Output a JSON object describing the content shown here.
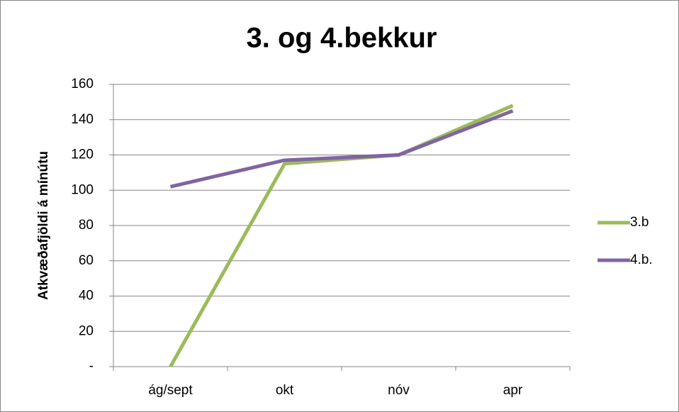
{
  "chart_data": {
    "type": "line",
    "title": "3. og 4.bekkur",
    "y_label": "Atkvæðafjöldi á mínútu",
    "categories": [
      "ág/sept",
      "okt",
      "nóv",
      "apr"
    ],
    "series": [
      {
        "name": "3.b",
        "color": "#9bbb59",
        "values": [
          0,
          115,
          120,
          148
        ]
      },
      {
        "name": "4.b.",
        "color": "#8064a2",
        "values": [
          102,
          117,
          120,
          145
        ]
      }
    ],
    "ylim": [
      0,
      160
    ],
    "yticks": [
      {
        "value": 0,
        "label": "-"
      },
      20,
      40,
      60,
      80,
      100,
      120,
      140,
      160
    ],
    "grid": true,
    "legend": "right"
  }
}
